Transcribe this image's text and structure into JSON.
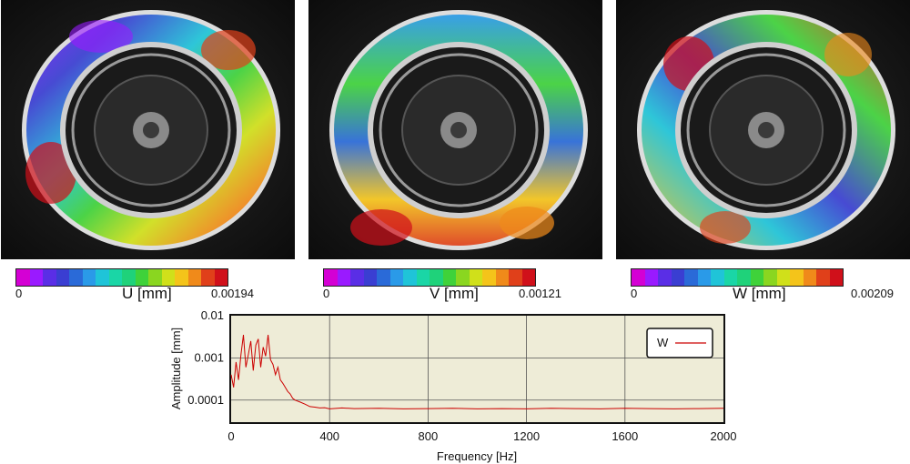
{
  "colormap": [
    "#d400d4",
    "#9a1aff",
    "#5a2ee6",
    "#3a3ed2",
    "#2a6ad8",
    "#2a9ae8",
    "#1fc4d8",
    "#1ad6a6",
    "#1fd27a",
    "#3fd23a",
    "#8ad620",
    "#d0e01a",
    "#f4c41a",
    "#f08a1a",
    "#e0401a",
    "#d0101a"
  ],
  "panels": [
    {
      "label": "U [mm]",
      "min": "0",
      "max": "0.00194"
    },
    {
      "label": "V [mm]",
      "min": "0",
      "max": "0.00121"
    },
    {
      "label": "W [mm]",
      "min": "0",
      "max": "0.00209"
    }
  ],
  "chart_data": {
    "type": "line",
    "xlabel": "Frequency [Hz]",
    "ylabel": "Amplitude [mm]",
    "xlim": [
      0,
      2000
    ],
    "ylim": [
      3e-05,
      0.01
    ],
    "yscale": "log",
    "xticks": [
      "0",
      "400",
      "800",
      "1200",
      "1600",
      "2000"
    ],
    "yticks": [
      "0.0001",
      "0.001",
      "0.01"
    ],
    "grid": true,
    "legend_position": "top-right",
    "series": [
      {
        "name": "W",
        "color": "#cc0000",
        "x": [
          0,
          10,
          20,
          30,
          40,
          50,
          60,
          70,
          80,
          90,
          100,
          110,
          120,
          130,
          140,
          150,
          160,
          170,
          180,
          190,
          200,
          210,
          220,
          230,
          240,
          250,
          260,
          280,
          300,
          320,
          340,
          360,
          380,
          400,
          450,
          500,
          600,
          700,
          800,
          900,
          1000,
          1100,
          1200,
          1300,
          1400,
          1500,
          1600,
          1700,
          1800,
          1900,
          2000
        ],
        "y": [
          0.0004,
          0.0002,
          0.0008,
          0.0003,
          0.0012,
          0.0035,
          0.0006,
          0.0012,
          0.0025,
          0.0005,
          0.002,
          0.0028,
          0.0006,
          0.0018,
          0.0011,
          0.0035,
          0.0009,
          0.0007,
          0.0004,
          0.0006,
          0.0003,
          0.00025,
          0.0002,
          0.00016,
          0.00014,
          0.00011,
          0.0001,
          9e-05,
          8e-05,
          7e-05,
          6.8e-05,
          6.5e-05,
          6.6e-05,
          6.2e-05,
          6.5e-05,
          6.3e-05,
          6.4e-05,
          6.2e-05,
          6.3e-05,
          6.4e-05,
          6.2e-05,
          6.3e-05,
          6.2e-05,
          6.4e-05,
          6.3e-05,
          6.2e-05,
          6.4e-05,
          6.3e-05,
          6.2e-05,
          6.3e-05,
          6.4e-05
        ]
      }
    ]
  }
}
